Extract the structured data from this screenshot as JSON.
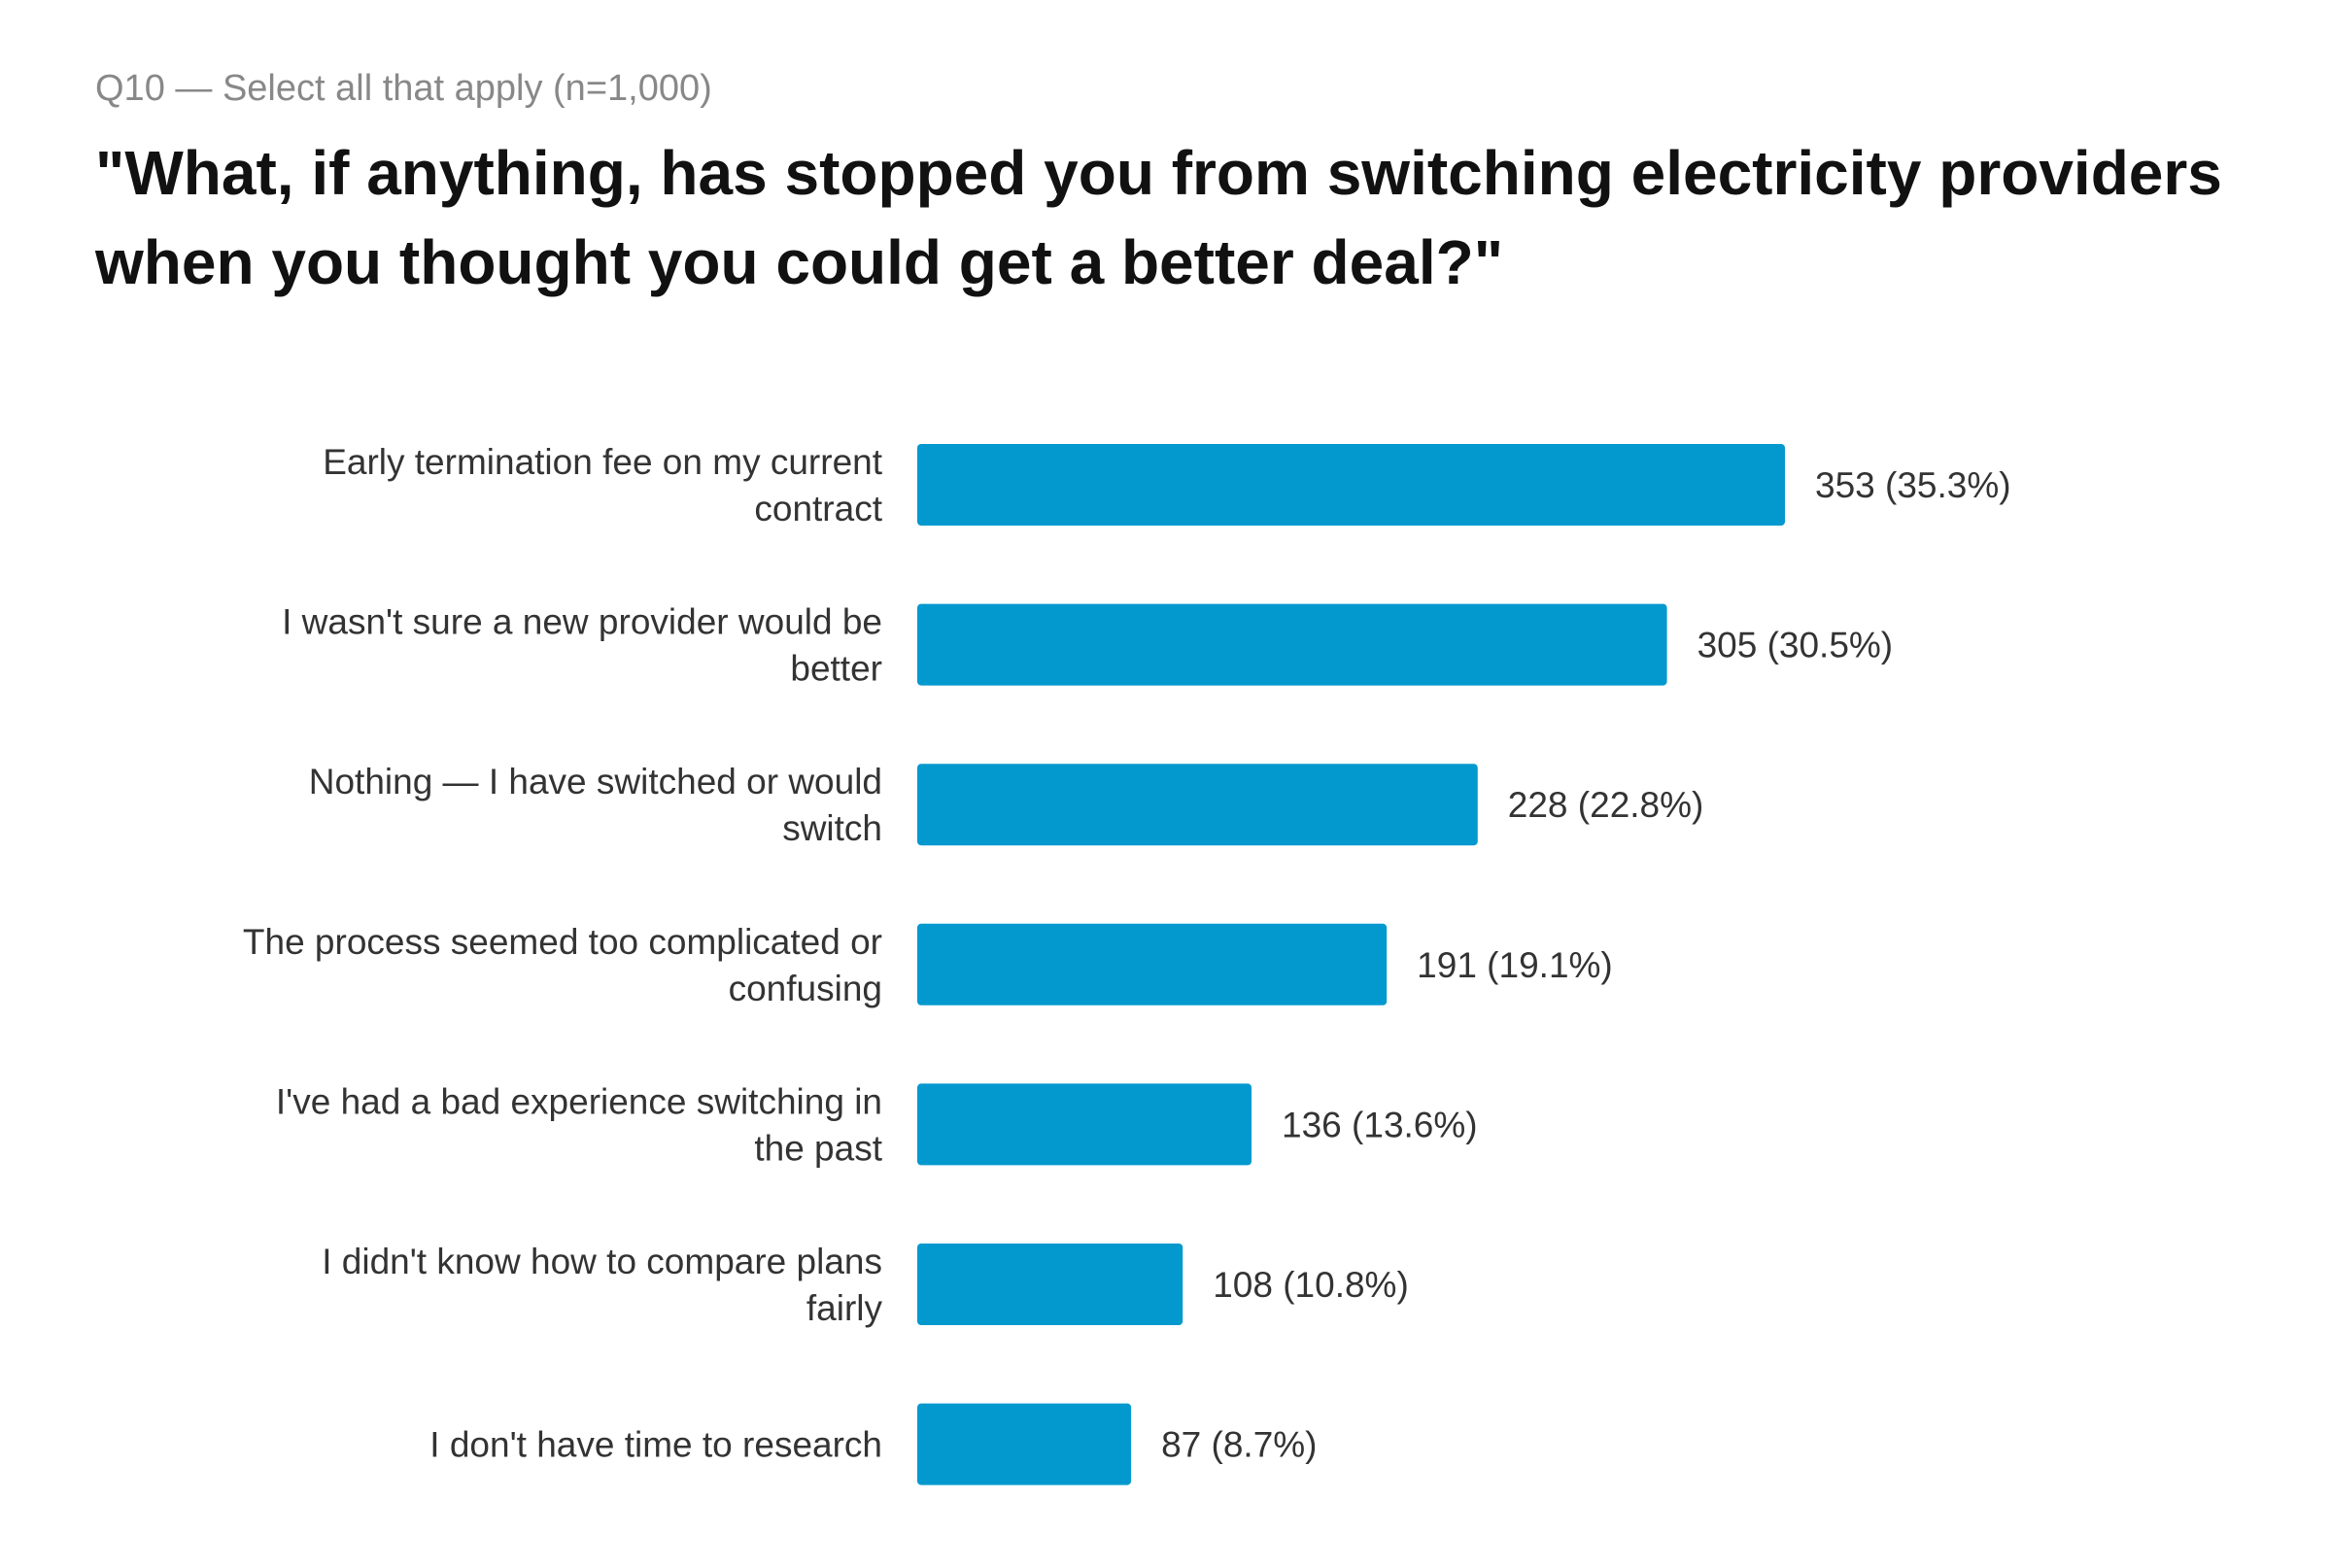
{
  "header": {
    "subtitle": "Q10 — Select all that apply (n=1,000)",
    "title": "\"What, if anything, has stopped you from switching electricity providers when you thought you could get a better deal?\""
  },
  "chart_data": {
    "type": "bar",
    "orientation": "horizontal",
    "title": "\"What, if anything, has stopped you from switching electricity providers when you thought you could get a better deal?\"",
    "subtitle": "Q10 — Select all that apply (n=1,000)",
    "categories": [
      [
        "Early termination fee on my current",
        "contract"
      ],
      [
        "I wasn't sure a new provider would be",
        "better"
      ],
      [
        "Nothing — I have switched or would",
        "switch"
      ],
      [
        "The process seemed too complicated or",
        "confusing"
      ],
      [
        "I've had a bad experience switching in",
        "the past"
      ],
      [
        "I didn't know how to compare plans",
        "fairly"
      ],
      [
        "I don't have time to research"
      ]
    ],
    "values": [
      353,
      305,
      228,
      191,
      136,
      108,
      87
    ],
    "data_labels": [
      "353 (35.3%)",
      "305 (30.5%)",
      "228 (22.8%)",
      "191 (19.1%)",
      "136 (13.6%)",
      "108 (10.8%)",
      "87 (8.7%)"
    ],
    "bar_color": "#0399cf",
    "grid": false,
    "legend": "none"
  }
}
